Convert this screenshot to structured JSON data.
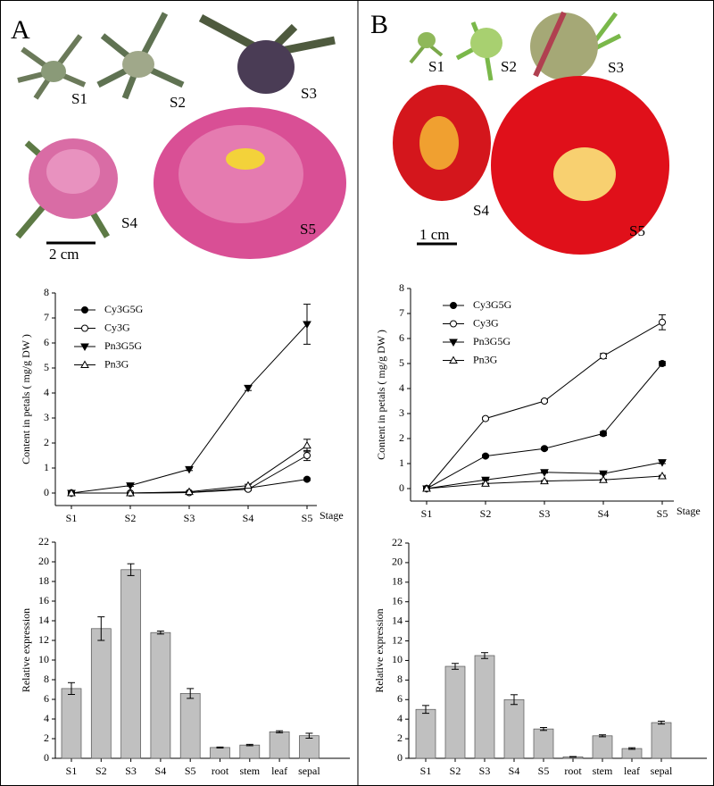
{
  "panels": [
    {
      "label": "A",
      "stages": [
        "S1",
        "S2",
        "S3",
        "S4",
        "S5"
      ],
      "scale": "2 cm"
    },
    {
      "label": "B",
      "stages": [
        "S1",
        "S2",
        "S3",
        "S4",
        "S5"
      ],
      "scale": "1 cm"
    }
  ],
  "chart_data": [
    {
      "type": "line",
      "categories": [
        "S1",
        "S2",
        "S3",
        "S4",
        "S5"
      ],
      "x_label": "Stage",
      "y_label": "Content in petals ( mg/g DW )",
      "ylim": [
        -0.5,
        8
      ],
      "yticks": [
        0,
        1,
        2,
        3,
        4,
        5,
        6,
        7,
        8
      ],
      "series": [
        {
          "name": "Cy3G5G",
          "color": "#000000",
          "marker": "circle-filled",
          "values": [
            0,
            0,
            0.02,
            0.2,
            0.55
          ],
          "errors": [
            0.02,
            0.02,
            0.02,
            0.05,
            0.05
          ]
        },
        {
          "name": "Cy3G",
          "color": "#000000",
          "marker": "circle-open",
          "values": [
            0,
            0,
            0.02,
            0.15,
            1.5
          ],
          "errors": [
            0.02,
            0.02,
            0.02,
            0.05,
            0.2
          ]
        },
        {
          "name": "Pn3G5G",
          "color": "#000000",
          "marker": "triangle-down-filled",
          "values": [
            0,
            0.3,
            0.95,
            4.2,
            6.75
          ],
          "errors": [
            0.02,
            0.03,
            0.05,
            0.1,
            0.8
          ]
        },
        {
          "name": "Pn3G",
          "color": "#000000",
          "marker": "triangle-up-open",
          "values": [
            0,
            0,
            0.05,
            0.3,
            1.9
          ],
          "errors": [
            0.02,
            0.02,
            0.02,
            0.05,
            0.25
          ]
        }
      ]
    },
    {
      "type": "line",
      "categories": [
        "S1",
        "S2",
        "S3",
        "S4",
        "S5"
      ],
      "x_label": "Stage",
      "y_label": "Content in petals ( mg/g DW )",
      "ylim": [
        -0.5,
        8
      ],
      "yticks": [
        0,
        1,
        2,
        3,
        4,
        5,
        6,
        7,
        8
      ],
      "series": [
        {
          "name": "Cy3G5G",
          "color": "#000000",
          "marker": "circle-filled",
          "values": [
            0,
            1.3,
            1.6,
            2.2,
            5.0
          ],
          "errors": [
            0.02,
            0.05,
            0.05,
            0.08,
            0.08
          ]
        },
        {
          "name": "Cy3G",
          "color": "#000000",
          "marker": "circle-open",
          "values": [
            0,
            2.8,
            3.5,
            5.3,
            6.65
          ],
          "errors": [
            0.02,
            0.05,
            0.05,
            0.1,
            0.3
          ]
        },
        {
          "name": "Pn3G5G",
          "color": "#000000",
          "marker": "triangle-down-filled",
          "values": [
            0,
            0.35,
            0.65,
            0.6,
            1.05
          ],
          "errors": [
            0.02,
            0.03,
            0.03,
            0.03,
            0.05
          ]
        },
        {
          "name": "Pn3G",
          "color": "#000000",
          "marker": "triangle-up-open",
          "values": [
            0,
            0.2,
            0.3,
            0.35,
            0.5
          ],
          "errors": [
            0.02,
            0.02,
            0.02,
            0.02,
            0.03
          ]
        }
      ]
    },
    {
      "type": "bar",
      "categories": [
        "S1",
        "S2",
        "S3",
        "S4",
        "S5",
        "root",
        "stem",
        "leaf",
        "sepal"
      ],
      "y_label": "Relative expression",
      "color": "#c0c0c0",
      "ylim": [
        0,
        22
      ],
      "yticks": [
        0,
        2,
        4,
        6,
        8,
        10,
        12,
        14,
        16,
        18,
        20,
        22
      ],
      "values": [
        7.1,
        13.2,
        19.2,
        12.8,
        6.6,
        1.1,
        1.35,
        2.7,
        2.3
      ],
      "errors": [
        0.6,
        1.2,
        0.6,
        0.15,
        0.5,
        0.05,
        0.07,
        0.1,
        0.25
      ]
    },
    {
      "type": "bar",
      "categories": [
        "S1",
        "S2",
        "S3",
        "S4",
        "S5",
        "root",
        "stem",
        "leaf",
        "sepal"
      ],
      "y_label": "Relative expression",
      "color": "#c0c0c0",
      "ylim": [
        0,
        22
      ],
      "yticks": [
        0,
        2,
        4,
        6,
        8,
        10,
        12,
        14,
        16,
        18,
        20,
        22
      ],
      "values": [
        5.0,
        9.4,
        10.5,
        6.0,
        3.0,
        0.15,
        2.3,
        1.0,
        3.65
      ],
      "errors": [
        0.4,
        0.3,
        0.3,
        0.5,
        0.15,
        0.03,
        0.1,
        0.08,
        0.15
      ]
    }
  ]
}
